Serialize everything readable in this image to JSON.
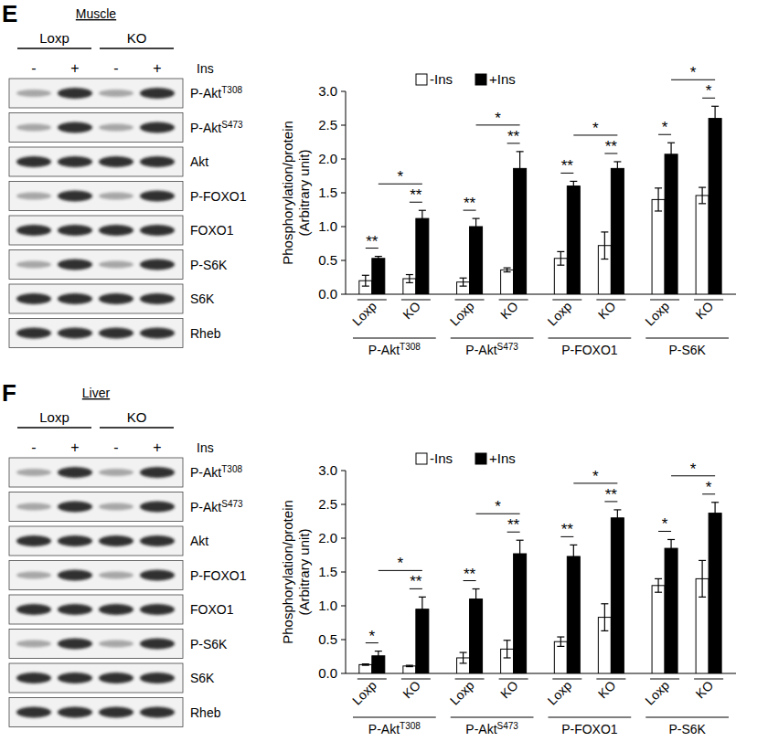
{
  "chart_data": [
    {
      "type": "bar",
      "y_label": "Phosphorylation/protein (Arbitrary unit)",
      "categories": [
        "Loxp",
        "KO",
        "Loxp",
        "KO",
        "Loxp",
        "KO",
        "Loxp",
        "KO"
      ],
      "groups": [
        {
          "text": "P-Akt",
          "sup": "T308"
        },
        {
          "text": "P-Akt",
          "sup": "S473"
        },
        {
          "text": "P-FOXO1"
        },
        {
          "text": "P-S6K"
        }
      ],
      "series": [
        {
          "name": "-Ins",
          "color": "#ffffff",
          "values": [
            0.2,
            0.23,
            0.18,
            0.36,
            0.53,
            0.72,
            1.4,
            1.46
          ],
          "errors": [
            0.08,
            0.06,
            0.06,
            0.03,
            0.1,
            0.2,
            0.17,
            0.12
          ]
        },
        {
          "name": "+Ins",
          "color": "#000000",
          "values": [
            0.53,
            1.12,
            1.0,
            1.86,
            1.6,
            1.86,
            2.07,
            2.6
          ],
          "errors": [
            0.03,
            0.12,
            0.12,
            0.25,
            0.07,
            0.1,
            0.17,
            0.18
          ]
        }
      ],
      "significance_within": [
        "**",
        "**",
        "**",
        "**",
        "**",
        "**",
        "*",
        "*"
      ],
      "significance_between": [
        "*",
        "*",
        "*",
        "*"
      ],
      "ylim": [
        0,
        3
      ],
      "yticks": [
        {
          "value": 0,
          "label": "0.0"
        },
        {
          "value": 0.5,
          "label": "0.5"
        },
        {
          "value": 1,
          "label": "1.0"
        },
        {
          "value": 1.5,
          "label": "1.5"
        },
        {
          "value": 2,
          "label": "2.0"
        },
        {
          "value": 2.5,
          "label": "2.5"
        },
        {
          "value": 3,
          "label": "3.0"
        }
      ],
      "legend": "top",
      "grid": false
    },
    {
      "type": "bar",
      "y_label": "Phosphorylation/protein (Arbitrary unit)",
      "categories": [
        "Loxp",
        "KO",
        "Loxp",
        "KO",
        "Loxp",
        "KO",
        "Loxp",
        "KO"
      ],
      "groups": [
        {
          "text": "P-Akt",
          "sup": "T308"
        },
        {
          "text": "P-Akt",
          "sup": "S473"
        },
        {
          "text": "P-FOXO1"
        },
        {
          "text": "P-S6K"
        }
      ],
      "series": [
        {
          "name": "-Ins",
          "color": "#ffffff",
          "values": [
            0.13,
            0.11,
            0.23,
            0.36,
            0.47,
            0.83,
            1.3,
            1.4
          ],
          "errors": [
            0.01,
            0.01,
            0.08,
            0.13,
            0.07,
            0.2,
            0.1,
            0.27
          ]
        },
        {
          "name": "+Ins",
          "color": "#000000",
          "values": [
            0.26,
            0.95,
            1.1,
            1.77,
            1.73,
            2.3,
            1.85,
            2.37
          ],
          "errors": [
            0.07,
            0.18,
            0.15,
            0.2,
            0.17,
            0.12,
            0.13,
            0.16
          ]
        }
      ],
      "significance_within": [
        "*",
        "**",
        "**",
        "**",
        "**",
        "**",
        "*",
        "*"
      ],
      "significance_between": [
        "*",
        "*",
        "*",
        "*"
      ],
      "ylim": [
        0,
        3
      ],
      "yticks": [
        {
          "value": 0,
          "label": "0.0"
        },
        {
          "value": 0.5,
          "label": "0.5"
        },
        {
          "value": 1,
          "label": "1.0"
        },
        {
          "value": 1.5,
          "label": "1.5"
        },
        {
          "value": 2,
          "label": "2.0"
        },
        {
          "value": 2.5,
          "label": "2.5"
        },
        {
          "value": 3,
          "label": "3.0"
        }
      ],
      "legend": "top",
      "grid": false
    }
  ],
  "blots": [
    {
      "panel": "E",
      "tissue": "Muscle",
      "genotypes": [
        "Loxp",
        "KO"
      ],
      "treatment_label": "Ins",
      "treatments": [
        "-",
        "+",
        "-",
        "+"
      ],
      "rows": [
        {
          "text": "P-Akt",
          "sup": "T308"
        },
        {
          "text": "P-Akt",
          "sup": "S473"
        },
        {
          "text": "Akt"
        },
        {
          "text": "P-FOXO1"
        },
        {
          "text": "FOXO1"
        },
        {
          "text": "P-S6K"
        },
        {
          "text": "S6K"
        },
        {
          "text": "Rheb"
        }
      ]
    },
    {
      "panel": "F",
      "tissue": "Liver",
      "genotypes": [
        "Loxp",
        "KO"
      ],
      "treatment_label": "Ins",
      "treatments": [
        "-",
        "+",
        "-",
        "+"
      ],
      "rows": [
        {
          "text": "P-Akt",
          "sup": "T308"
        },
        {
          "text": "P-Akt",
          "sup": "S473"
        },
        {
          "text": "Akt"
        },
        {
          "text": "P-FOXO1"
        },
        {
          "text": "FOXO1"
        },
        {
          "text": "P-S6K"
        },
        {
          "text": "S6K"
        },
        {
          "text": "Rheb"
        }
      ]
    }
  ]
}
